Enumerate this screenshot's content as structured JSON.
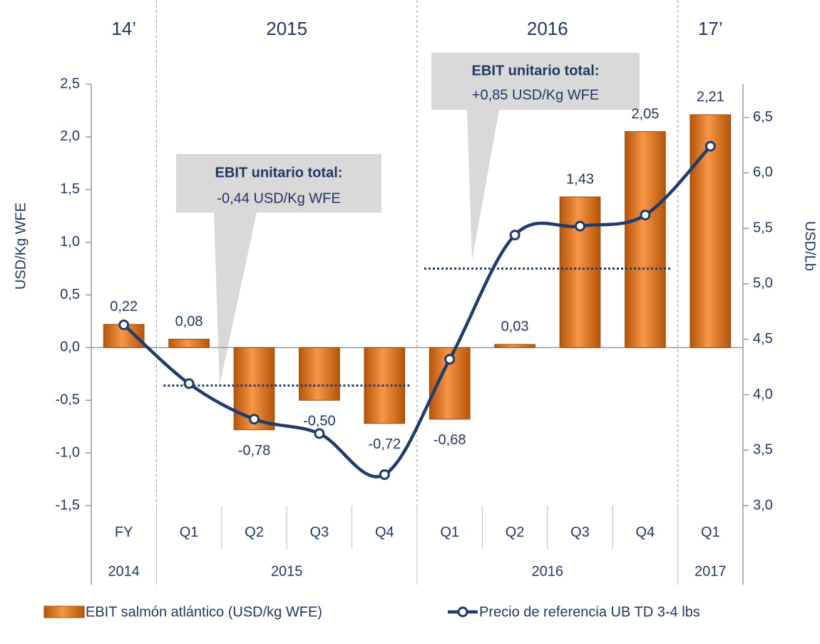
{
  "chart_data": {
    "type": "bar",
    "groups": [
      {
        "header": "14’",
        "year": "2014",
        "categories": [
          "FY"
        ]
      },
      {
        "header": "2015",
        "year": "2015",
        "categories": [
          "Q1",
          "Q2",
          "Q3",
          "Q4"
        ]
      },
      {
        "header": "2016",
        "year": "2016",
        "categories": [
          "Q1",
          "Q2",
          "Q3",
          "Q4"
        ]
      },
      {
        "header": "17’",
        "year": "2017",
        "categories": [
          "Q1"
        ]
      }
    ],
    "series": [
      {
        "name": "EBIT salmón atlántico (USD/kg WFE)",
        "type": "bar",
        "color": "#e46c0a",
        "values": [
          0.22,
          0.08,
          -0.78,
          -0.5,
          -0.72,
          -0.68,
          0.03,
          1.43,
          2.05,
          2.21
        ],
        "value_labels": [
          "0,22",
          "0,08",
          "-0,78",
          "-0,50",
          "-0,72",
          "-0,68",
          "0,03",
          "1,43",
          "2,05",
          "2,21"
        ]
      },
      {
        "name": "Precio de referencia UB TD 3-4 lbs",
        "type": "line",
        "color": "#1f3c6e",
        "axis": "y2",
        "values": [
          4.63,
          4.1,
          3.78,
          3.65,
          3.28,
          4.32,
          5.44,
          5.52,
          5.62,
          6.24
        ]
      }
    ],
    "ylabel": "USD/Kg WFE",
    "y2label": "USD/Lb",
    "ylim": [
      -1.5,
      2.5
    ],
    "yticks": [
      {
        "value": -1.5,
        "label": "-1,5"
      },
      {
        "value": -1.0,
        "label": "-1,0"
      },
      {
        "value": -0.5,
        "label": "-0,5"
      },
      {
        "value": 0,
        "label": "0,0"
      },
      {
        "value": 0.5,
        "label": "0,5"
      },
      {
        "value": 1.0,
        "label": "1,0"
      },
      {
        "value": 1.5,
        "label": "1,5"
      },
      {
        "value": 2.0,
        "label": "2,0"
      },
      {
        "value": 2.5,
        "label": "2,5"
      }
    ],
    "y2lim": [
      3.0,
      6.8
    ],
    "y2ticks": [
      {
        "value": 3.0,
        "label": "3,0"
      },
      {
        "value": 3.5,
        "label": "3,5"
      },
      {
        "value": 4.0,
        "label": "4,0"
      },
      {
        "value": 4.5,
        "label": "4,5"
      },
      {
        "value": 5.0,
        "label": "5,0"
      },
      {
        "value": 5.5,
        "label": "5,5"
      },
      {
        "value": 6.0,
        "label": "6,0"
      },
      {
        "value": 6.5,
        "label": "6,5"
      }
    ],
    "reference_lines": [
      {
        "value": -0.36
      },
      {
        "value": 0.75
      }
    ],
    "annotations": [
      {
        "title": "EBIT unitario total:",
        "text": "-0,44 USD/Kg WFE"
      },
      {
        "title": "EBIT unitario total:",
        "text": "+0,85 USD/Kg WFE"
      }
    ]
  }
}
